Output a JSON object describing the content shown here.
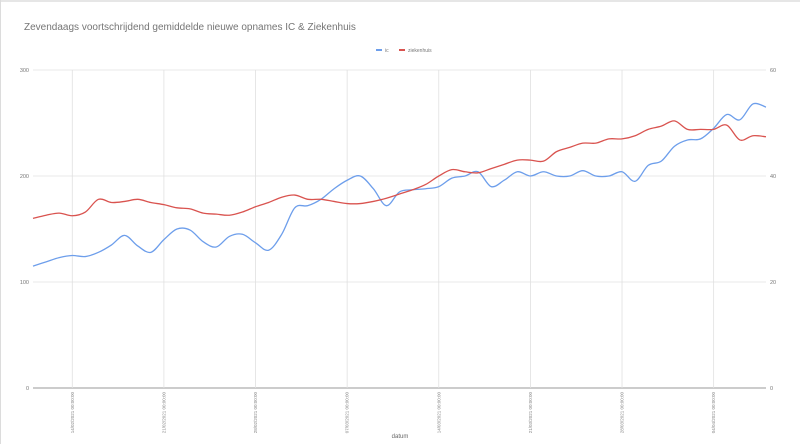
{
  "chart_data": {
    "type": "line",
    "title": "Zevendaags voortschrijdend gemiddelde nieuwe opnames IC & Ziekenhuis",
    "xlabel": "datum",
    "legend_position": "top",
    "grid": true,
    "y_left": {
      "range": [
        0,
        300
      ],
      "ticks": [
        "0",
        "100",
        "200",
        "300"
      ]
    },
    "y_right": {
      "range": [
        0,
        60
      ],
      "ticks": [
        "0",
        "20",
        "40",
        "60"
      ]
    },
    "x_ticks": [
      "14/02/2021 00:00:00",
      "21/02/2021 00:00:00",
      "28/02/2021 00:00:00",
      "07/03/2021 00:00:00",
      "14/03/2021 00:00:00",
      "21/03/2021 00:00:00",
      "28/03/2021 00:00:00",
      "04/04/2021 00:00:00"
    ],
    "x": [
      "11/02/2021",
      "12/02/2021",
      "13/02/2021",
      "14/02/2021",
      "15/02/2021",
      "16/02/2021",
      "17/02/2021",
      "18/02/2021",
      "19/02/2021",
      "20/02/2021",
      "21/02/2021",
      "22/02/2021",
      "23/02/2021",
      "24/02/2021",
      "25/02/2021",
      "26/02/2021",
      "27/02/2021",
      "28/02/2021",
      "01/03/2021",
      "02/03/2021",
      "03/03/2021",
      "04/03/2021",
      "05/03/2021",
      "06/03/2021",
      "07/03/2021",
      "08/03/2021",
      "09/03/2021",
      "10/03/2021",
      "11/03/2021",
      "12/03/2021",
      "13/03/2021",
      "14/03/2021",
      "15/03/2021",
      "16/03/2021",
      "17/03/2021",
      "18/03/2021",
      "19/03/2021",
      "20/03/2021",
      "21/03/2021",
      "22/03/2021",
      "23/03/2021",
      "24/03/2021",
      "25/03/2021",
      "26/03/2021",
      "27/03/2021",
      "28/03/2021",
      "29/03/2021",
      "30/03/2021",
      "31/03/2021",
      "01/04/2021",
      "02/04/2021",
      "03/04/2021",
      "04/04/2021",
      "05/04/2021",
      "06/04/2021",
      "07/04/2021",
      "08/04/2021"
    ],
    "series": [
      {
        "name": "ic",
        "color": "#6d9eeb",
        "axis": "left",
        "values": [
          115,
          119,
          123,
          125,
          124,
          128,
          135,
          144,
          134,
          128,
          140,
          150,
          149,
          138,
          133,
          143,
          145,
          137,
          130,
          145,
          170,
          172,
          178,
          188,
          196,
          200,
          188,
          172,
          185,
          187,
          188,
          190,
          198,
          200,
          204,
          190,
          196,
          204,
          200,
          204,
          200,
          200,
          205,
          200,
          200,
          204,
          195,
          210,
          214,
          228,
          234,
          235,
          245,
          258,
          253,
          268,
          265
        ]
      },
      {
        "name": "ziekenhuis",
        "color": "#d9534f",
        "axis": "right",
        "values": [
          32.0,
          32.6,
          33.0,
          32.5,
          33.2,
          35.6,
          35.0,
          35.2,
          35.6,
          35.0,
          34.6,
          34.0,
          33.8,
          33.0,
          32.8,
          32.6,
          33.2,
          34.2,
          35.0,
          36.0,
          36.4,
          35.6,
          35.6,
          35.2,
          34.8,
          34.8,
          35.2,
          35.8,
          36.6,
          37.4,
          38.4,
          40.0,
          41.2,
          40.8,
          40.6,
          41.4,
          42.2,
          43.0,
          43.0,
          42.8,
          44.6,
          45.4,
          46.2,
          46.2,
          47.0,
          47.0,
          47.6,
          48.8,
          49.4,
          50.4,
          48.8,
          48.8,
          48.8,
          49.6,
          46.8,
          47.6,
          47.4
        ]
      }
    ]
  }
}
